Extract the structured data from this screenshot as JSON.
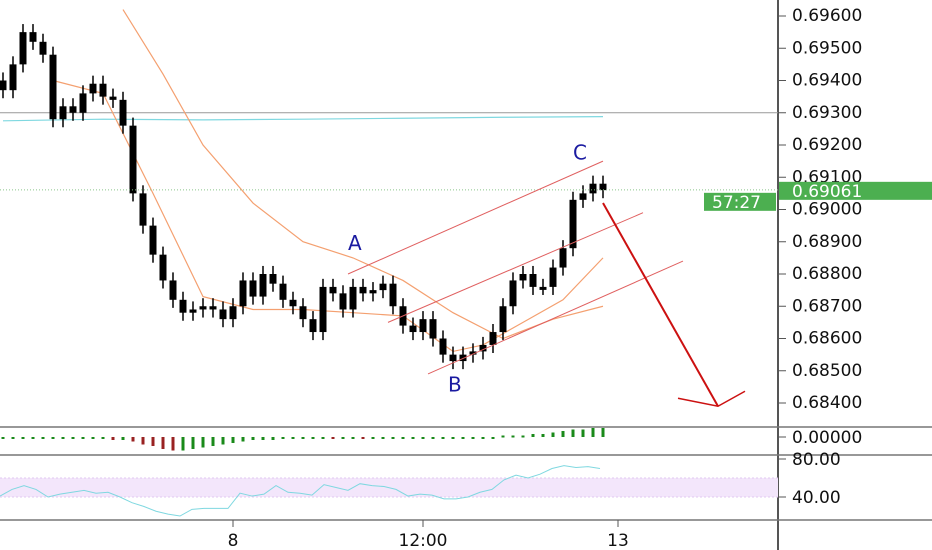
{
  "chart_data": {
    "type": "candlestick",
    "price_axis": {
      "ticks": [
        "0.69600",
        "0.69500",
        "0.69400",
        "0.69300",
        "0.69200",
        "0.69100",
        "0.69000",
        "0.68900",
        "0.68800",
        "0.68700",
        "0.68600",
        "0.68500",
        "0.68400"
      ],
      "ylim": [
        0.6836,
        0.6971
      ]
    },
    "time_axis": {
      "ticks": [
        {
          "label": "8",
          "bar": 23
        },
        {
          "label": "12:00",
          "bar": 42
        },
        {
          "label": "13",
          "bar": 61.5
        }
      ]
    },
    "last_price": "0.69061",
    "countdown": "57:27",
    "last_price_color": "#4caf50",
    "reference_line": 0.693,
    "closes": [
      0.6937,
      0.6945,
      0.6955,
      0.6952,
      0.6948,
      0.6928,
      0.6932,
      0.693,
      0.6936,
      0.6939,
      0.6935,
      0.6934,
      0.6926,
      0.6905,
      0.6895,
      0.6886,
      0.6878,
      0.6872,
      0.6868,
      0.6869,
      0.687,
      0.6869,
      0.6866,
      0.687,
      0.6878,
      0.6873,
      0.688,
      0.6877,
      0.6872,
      0.687,
      0.6866,
      0.6862,
      0.6876,
      0.6874,
      0.6869,
      0.6876,
      0.6874,
      0.6875,
      0.6877,
      0.687,
      0.6864,
      0.6862,
      0.6866,
      0.686,
      0.6855,
      0.6853,
      0.6855,
      0.6856,
      0.6858,
      0.6862,
      0.687,
      0.6878,
      0.688,
      0.6876,
      0.6876,
      0.6882,
      0.6888,
      0.6903,
      0.6905,
      0.6908,
      0.6906
    ],
    "moving_averages": [
      {
        "color": "#7fd8e0",
        "bars": [
          0,
          10,
          20,
          30,
          40,
          50,
          60
        ],
        "values": [
          0.69275,
          0.6928,
          0.69278,
          0.6928,
          0.69283,
          0.69286,
          0.69288
        ]
      },
      {
        "color": "#f4a070",
        "bars": [
          5,
          10,
          15,
          20,
          25,
          30,
          35,
          40,
          45,
          48,
          52,
          56,
          60
        ],
        "values": [
          0.694,
          0.6936,
          0.6905,
          0.6873,
          0.6869,
          0.6869,
          0.6868,
          0.6867,
          0.6856,
          0.6858,
          0.6865,
          0.6872,
          0.6885
        ]
      },
      {
        "color": "#f4a070",
        "bars": [
          12,
          16,
          20,
          25,
          30,
          35,
          40,
          45,
          50,
          55,
          60
        ],
        "values": [
          0.6962,
          0.6942,
          0.692,
          0.6902,
          0.689,
          0.6885,
          0.6878,
          0.6868,
          0.686,
          0.6866,
          0.687
        ]
      }
    ],
    "annotations": {
      "labels": [
        {
          "text": "A",
          "bar": 35.5,
          "price": 0.689
        },
        {
          "text": "B",
          "bar": 45.5,
          "price": 0.6846
        },
        {
          "text": "C",
          "bar": 58,
          "price": 0.6918
        }
      ],
      "channel_color": "#e06060",
      "channel": [
        [
          [
            34.5,
            0.688
          ],
          [
            60,
            0.6915
          ]
        ],
        [
          [
            38.5,
            0.6865
          ],
          [
            64,
            0.6899
          ]
        ],
        [
          [
            42.5,
            0.6849
          ],
          [
            68,
            0.6884
          ]
        ]
      ],
      "arrow_color": "#cc1111",
      "arrow": [
        [
          60,
          0.6902
        ],
        [
          71.5,
          0.6839
        ]
      ]
    },
    "macd": {
      "zero_label": "0.00000",
      "values": [
        -1e-05,
        -1e-05,
        -1e-05,
        -1e-05,
        -1e-05,
        -1e-05,
        -1e-05,
        -1e-05,
        -1e-05,
        -1e-05,
        -1e-05,
        -2e-05,
        -2e-05,
        -3e-05,
        -5e-05,
        -6e-05,
        -8e-05,
        -9e-05,
        -9e-05,
        -8e-05,
        -7e-05,
        -6e-05,
        -5e-05,
        -4e-05,
        -3e-05,
        -2e-05,
        -2e-05,
        -2e-05,
        -1e-05,
        -1e-05,
        -1e-05,
        -1e-05,
        0,
        -1e-05,
        -1e-05,
        0,
        -1e-05,
        -1e-05,
        -1e-05,
        -1e-05,
        -1e-05,
        -1e-05,
        -1e-05,
        -1e-05,
        -1e-05,
        -1e-05,
        -1e-05,
        -1e-05,
        -1e-05,
        0,
        1e-05,
        1e-05,
        1e-05,
        2e-05,
        2e-05,
        3e-05,
        4e-05,
        5e-05,
        5e-05,
        6e-05,
        6e-05
      ]
    },
    "rsi": {
      "ticks": [
        "80.00",
        "40.00"
      ],
      "band": [
        40,
        60
      ],
      "band_color": "#f3e6fb",
      "line_color": "#7fd8e0",
      "values": [
        41,
        48,
        52,
        48,
        40,
        43,
        45,
        47,
        44,
        45,
        40,
        34,
        30,
        25,
        22,
        20,
        27,
        28,
        28,
        28,
        44,
        41,
        43,
        52,
        45,
        44,
        42,
        53,
        50,
        47,
        54,
        52,
        51,
        48,
        41,
        43,
        42,
        38,
        38,
        40,
        45,
        48,
        58,
        63,
        60,
        64,
        70,
        73,
        71,
        72,
        70
      ]
    }
  }
}
